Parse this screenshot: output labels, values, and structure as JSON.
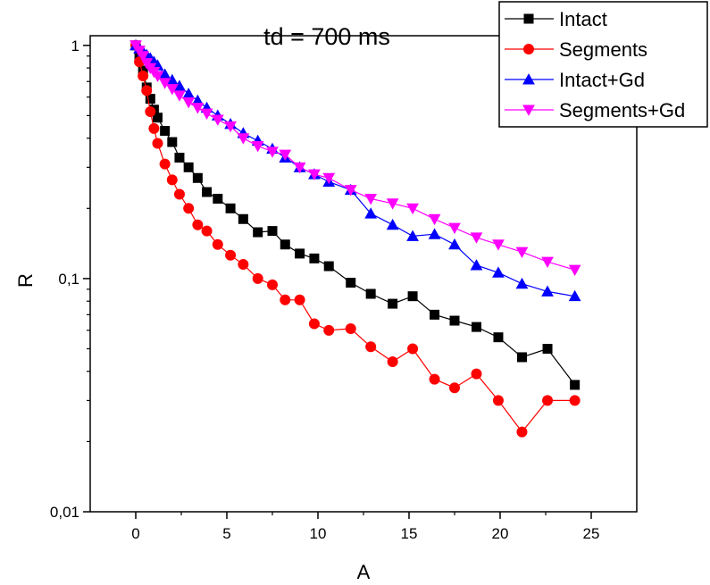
{
  "chart_data": {
    "type": "scatter",
    "title": "td = 700 ms",
    "xlabel": "A",
    "ylabel": "R",
    "xlim": [
      -2.5,
      27.5
    ],
    "ylim": [
      0.01,
      1.1
    ],
    "yscale": "log",
    "grid": false,
    "legend_position": "top-right",
    "xticks": [
      0,
      5,
      10,
      15,
      20,
      25
    ],
    "xtick_labels": [
      "0",
      "5",
      "10",
      "15",
      "20",
      "25"
    ],
    "yticks": [
      0.01,
      0.1,
      1
    ],
    "ytick_labels": [
      "0,01",
      "0,1",
      "1"
    ],
    "series": [
      {
        "name": "Intact",
        "color": "#000000",
        "marker": "square",
        "x": [
          0,
          0.2,
          0.4,
          0.6,
          0.8,
          1.0,
          1.2,
          1.6,
          2.0,
          2.4,
          2.9,
          3.4,
          3.9,
          4.5,
          5.2,
          5.9,
          6.7,
          7.5,
          8.2,
          9.0,
          9.8,
          10.6,
          11.8,
          12.9,
          14.1,
          15.2,
          16.4,
          17.5,
          18.7,
          19.9,
          21.2,
          22.6,
          24.1
        ],
        "y": [
          1.0,
          0.9,
          0.78,
          0.66,
          0.59,
          0.53,
          0.49,
          0.43,
          0.385,
          0.33,
          0.3,
          0.27,
          0.235,
          0.22,
          0.2,
          0.18,
          0.158,
          0.16,
          0.14,
          0.128,
          0.122,
          0.113,
          0.096,
          0.086,
          0.078,
          0.084,
          0.07,
          0.066,
          0.062,
          0.056,
          0.046,
          0.05,
          0.035
        ]
      },
      {
        "name": "Segments",
        "color": "#ff0000",
        "marker": "circle",
        "x": [
          0,
          0.2,
          0.4,
          0.6,
          0.8,
          1.0,
          1.2,
          1.6,
          2.0,
          2.4,
          2.9,
          3.4,
          3.9,
          4.5,
          5.2,
          5.9,
          6.7,
          7.5,
          8.2,
          9.0,
          9.8,
          10.6,
          11.8,
          12.9,
          14.1,
          15.2,
          16.4,
          17.5,
          18.7,
          19.9,
          21.2,
          22.6,
          24.1
        ],
        "y": [
          1.0,
          0.85,
          0.74,
          0.64,
          0.52,
          0.44,
          0.38,
          0.31,
          0.265,
          0.23,
          0.2,
          0.17,
          0.16,
          0.14,
          0.126,
          0.115,
          0.1,
          0.094,
          0.081,
          0.081,
          0.064,
          0.06,
          0.061,
          0.051,
          0.044,
          0.05,
          0.037,
          0.034,
          0.039,
          0.03,
          0.022,
          0.03,
          0.03
        ]
      },
      {
        "name": "Intact+Gd",
        "color": "#0000ff",
        "marker": "triangle-up",
        "x": [
          0,
          0.2,
          0.4,
          0.6,
          0.8,
          1.0,
          1.2,
          1.6,
          2.0,
          2.4,
          2.9,
          3.4,
          3.9,
          4.5,
          5.2,
          5.9,
          6.7,
          7.5,
          8.2,
          9.0,
          9.8,
          10.6,
          11.8,
          12.9,
          14.1,
          15.2,
          16.4,
          17.5,
          18.7,
          19.9,
          21.2,
          22.6,
          24.1
        ],
        "y": [
          1.0,
          0.97,
          0.94,
          0.91,
          0.88,
          0.85,
          0.82,
          0.75,
          0.71,
          0.67,
          0.62,
          0.58,
          0.54,
          0.5,
          0.46,
          0.42,
          0.39,
          0.36,
          0.33,
          0.3,
          0.28,
          0.26,
          0.24,
          0.19,
          0.17,
          0.152,
          0.155,
          0.14,
          0.114,
          0.106,
          0.095,
          0.088,
          0.084
        ]
      },
      {
        "name": "Segments+Gd",
        "color": "#ff00ff",
        "marker": "triangle-down",
        "x": [
          0,
          0.2,
          0.4,
          0.6,
          0.8,
          1.0,
          1.2,
          1.6,
          2.0,
          2.4,
          2.9,
          3.4,
          3.9,
          4.5,
          5.2,
          5.9,
          6.7,
          7.5,
          8.2,
          9.0,
          9.8,
          10.6,
          11.8,
          12.9,
          14.1,
          15.2,
          16.4,
          17.5,
          18.7,
          19.9,
          21.2,
          22.6,
          24.1
        ],
        "y": [
          1.0,
          0.95,
          0.9,
          0.84,
          0.8,
          0.77,
          0.74,
          0.69,
          0.65,
          0.61,
          0.57,
          0.54,
          0.51,
          0.48,
          0.45,
          0.4,
          0.37,
          0.35,
          0.34,
          0.3,
          0.28,
          0.27,
          0.24,
          0.22,
          0.21,
          0.2,
          0.18,
          0.165,
          0.15,
          0.14,
          0.13,
          0.118,
          0.109
        ]
      }
    ]
  }
}
